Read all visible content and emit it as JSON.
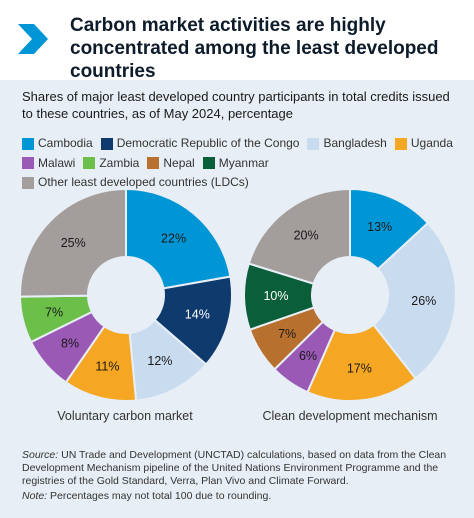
{
  "header": {
    "title": "Carbon market activities are highly concentrated among the least developed countries"
  },
  "subtitle": "Shares of major least developed country participants in total credits issued to these countries, as of May 2024, percentage",
  "legend": [
    {
      "label": "Cambodia",
      "color": "#0096d6"
    },
    {
      "label": "Democratic Republic of the Congo",
      "color": "#0e3a6e"
    },
    {
      "label": "Bangladesh",
      "color": "#c9dcef"
    },
    {
      "label": "Uganda",
      "color": "#f5a623"
    },
    {
      "label": "Malawi",
      "color": "#9b59b6"
    },
    {
      "label": "Zambia",
      "color": "#6cc04a"
    },
    {
      "label": "Nepal",
      "color": "#b8702e"
    },
    {
      "label": "Myanmar",
      "color": "#0b5e3a"
    },
    {
      "label": "Other least developed countries (LDCs)",
      "color": "#a39e9b"
    }
  ],
  "chart_data": [
    {
      "type": "pie",
      "title": "Voluntary carbon market",
      "series": [
        {
          "name": "Cambodia",
          "value": 22,
          "label": "22%",
          "color": "#0096d6"
        },
        {
          "name": "Democratic Republic of the Congo",
          "value": 14,
          "label": "14%",
          "color": "#0e3a6e"
        },
        {
          "name": "Bangladesh",
          "value": 12,
          "label": "12%",
          "color": "#c9dcef"
        },
        {
          "name": "Uganda",
          "value": 11,
          "label": "11%",
          "color": "#f5a623"
        },
        {
          "name": "Malawi",
          "value": 8,
          "label": "8%",
          "color": "#9b59b6"
        },
        {
          "name": "Zambia",
          "value": 7,
          "label": "7%",
          "color": "#6cc04a"
        },
        {
          "name": "Other least developed countries (LDCs)",
          "value": 25,
          "label": "25%",
          "color": "#a39e9b"
        }
      ]
    },
    {
      "type": "pie",
      "title": "Clean development mechanism",
      "series": [
        {
          "name": "Cambodia",
          "value": 13,
          "label": "13%",
          "color": "#0096d6"
        },
        {
          "name": "Bangladesh",
          "value": 26,
          "label": "26%",
          "color": "#c9dcef"
        },
        {
          "name": "Uganda",
          "value": 17,
          "label": "17%",
          "color": "#f5a623"
        },
        {
          "name": "Malawi",
          "value": 6,
          "label": "6%",
          "color": "#9b59b6"
        },
        {
          "name": "Nepal",
          "value": 7,
          "label": "7%",
          "color": "#b8702e"
        },
        {
          "name": "Myanmar",
          "value": 10,
          "label": "10%",
          "color": "#0b5e3a"
        },
        {
          "name": "Other least developed countries (LDCs)",
          "value": 20,
          "label": "20%",
          "color": "#a39e9b"
        }
      ]
    }
  ],
  "source": {
    "prefix": "Source:",
    "text": "UN Trade and Development (UNCTAD) calculations, based on data from the Clean Development Mechanism pipeline of the United Nations Environment Programme and the registries of the Gold Standard, Verra, Plan Vivo and Climate Forward."
  },
  "note": {
    "prefix": "Note:",
    "text": "Percentages may not total 100 due to rounding."
  }
}
